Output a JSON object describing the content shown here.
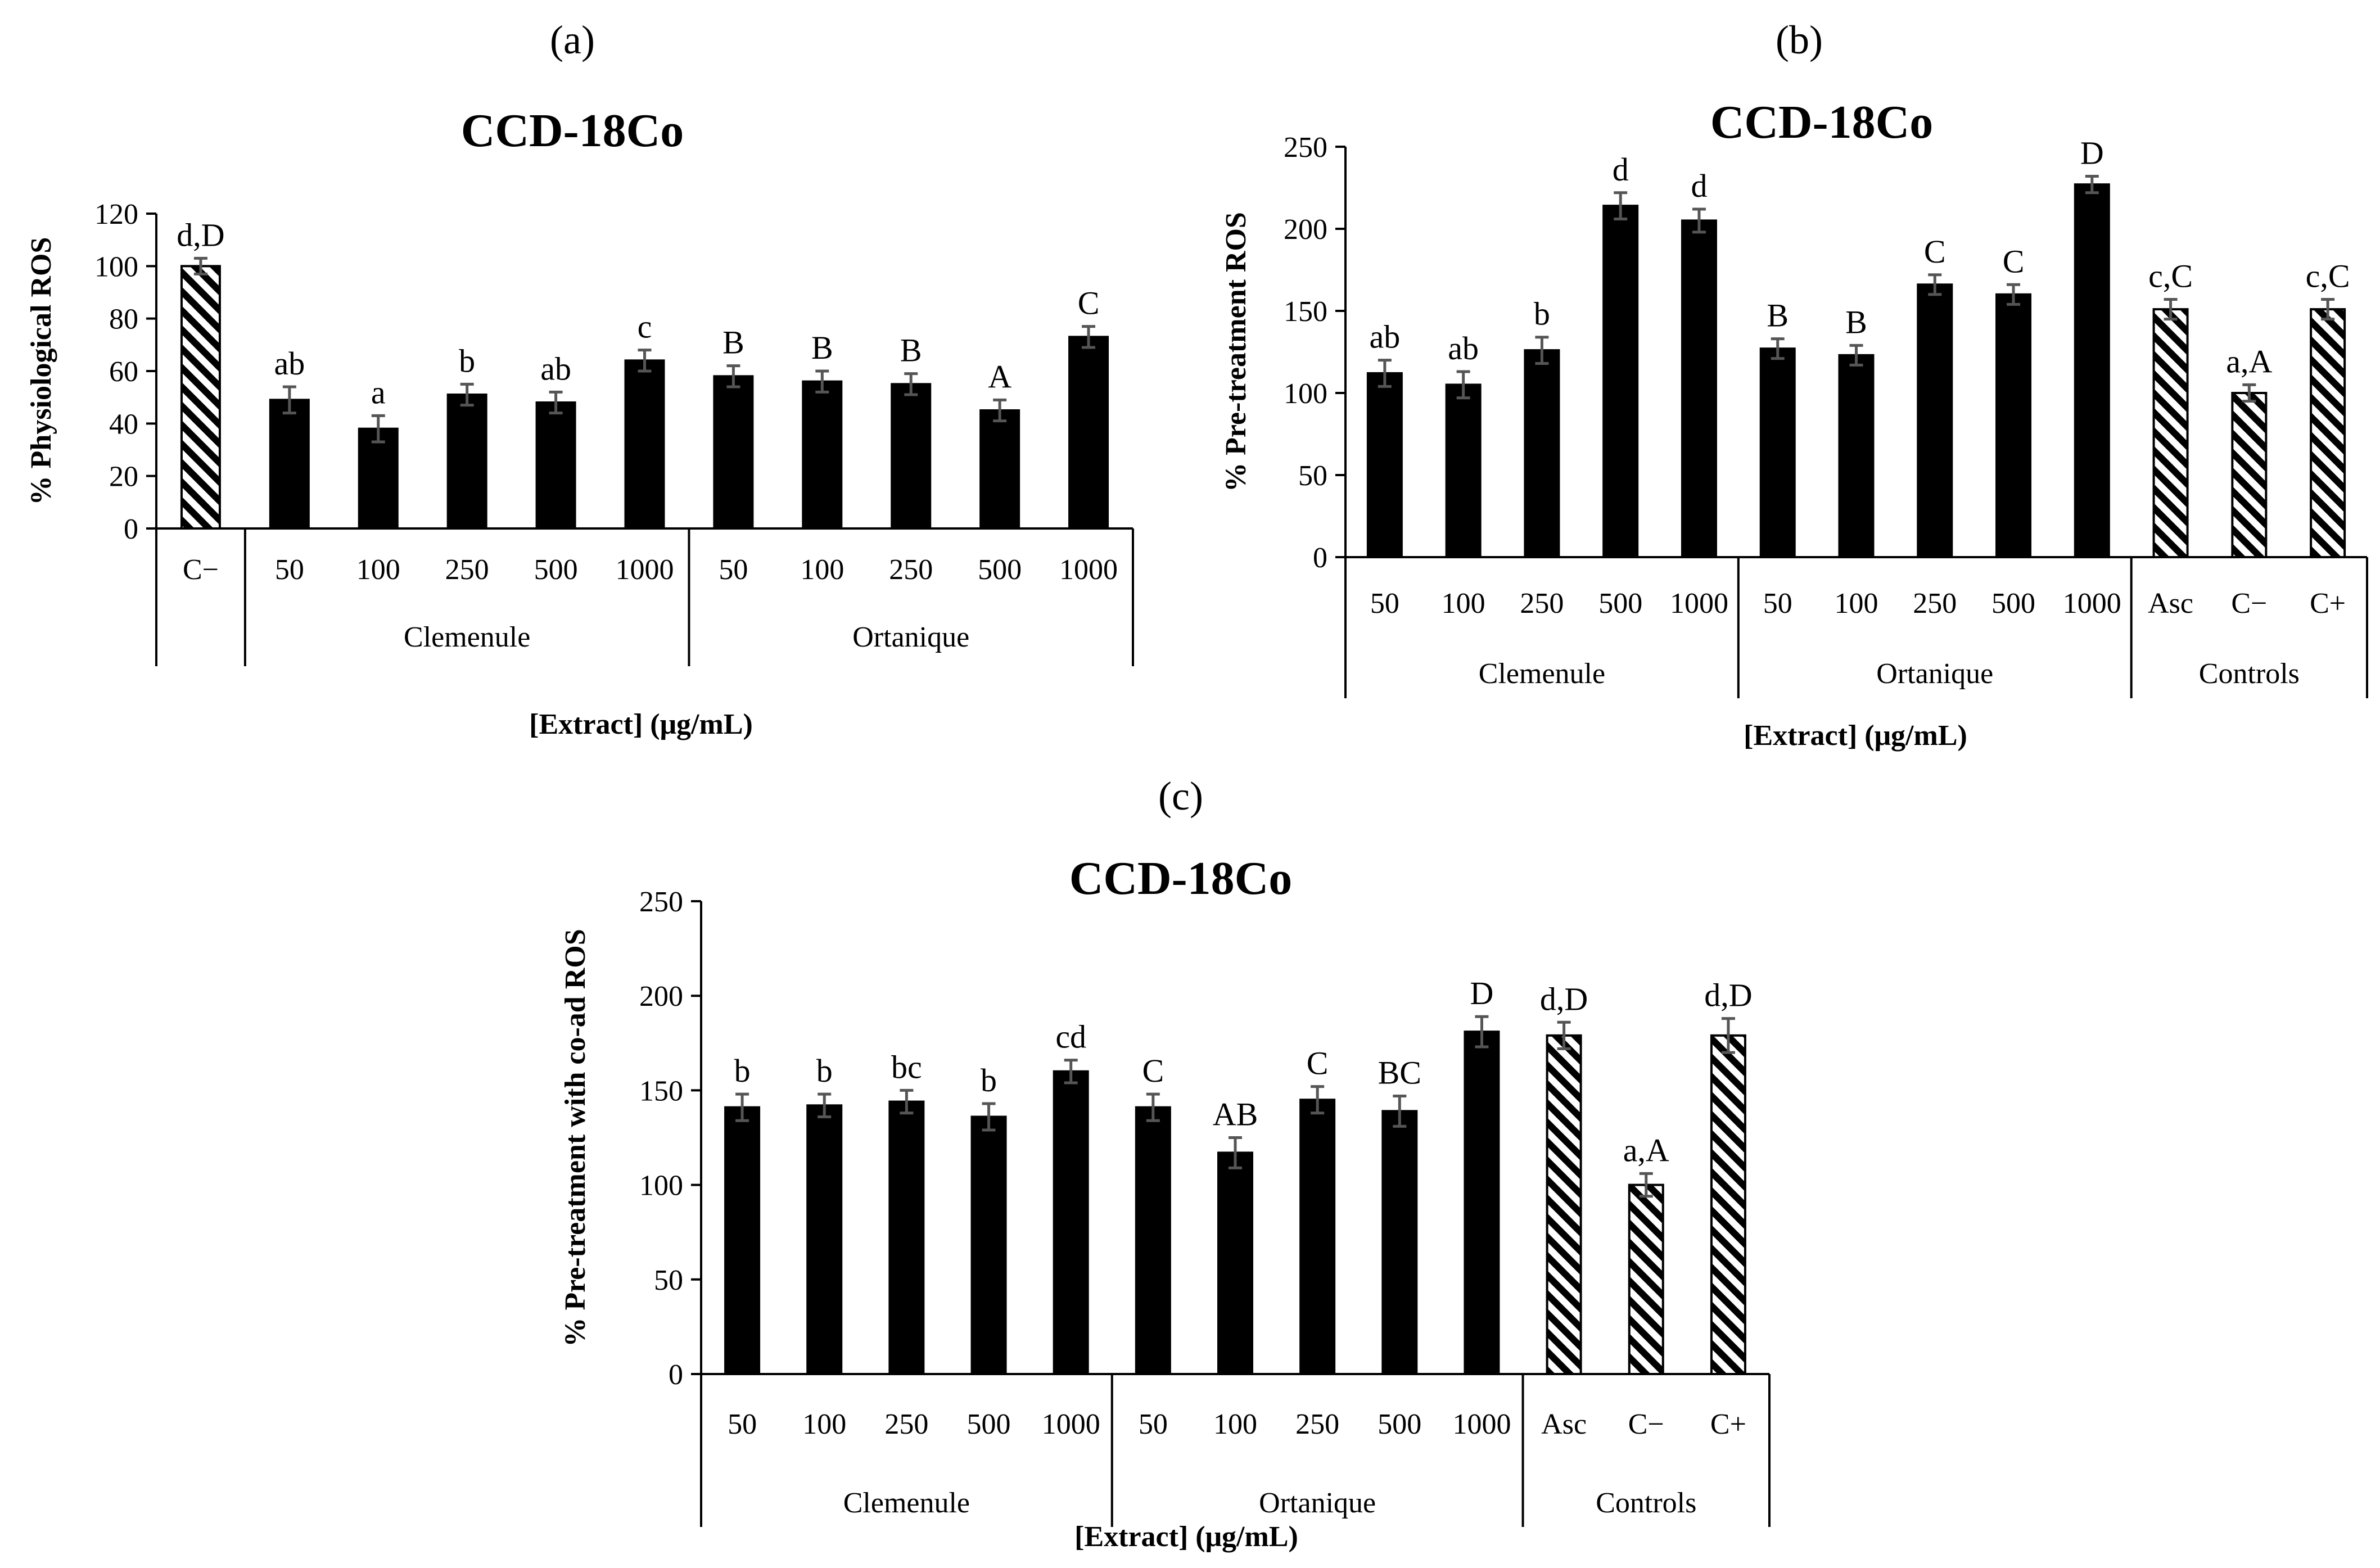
{
  "colors": {
    "bar": "#000000",
    "background": "#ffffff",
    "hatch": "#000000"
  },
  "chart_data": [
    {
      "type": "bar",
      "panel_label": "(a)",
      "title": "CCD-18Co",
      "ylabel": "% Physiological ROS",
      "xlabel": "[Extract] (μg/mL)",
      "ylim": [
        0,
        120
      ],
      "yticks": [
        "0",
        "20",
        "40",
        "60",
        "80",
        "100",
        "120"
      ],
      "groups": [
        "",
        "Clemenule",
        "Ortanique"
      ],
      "bars": [
        {
          "category": "C−",
          "group": 0,
          "value": 100,
          "error": 3,
          "label": "d,D",
          "pattern": "hatch"
        },
        {
          "category": "50",
          "group": 1,
          "value": 49,
          "error": 5,
          "label": "ab",
          "pattern": "solid"
        },
        {
          "category": "100",
          "group": 1,
          "value": 38,
          "error": 5,
          "label": "a",
          "pattern": "solid"
        },
        {
          "category": "250",
          "group": 1,
          "value": 51,
          "error": 4,
          "label": "b",
          "pattern": "solid"
        },
        {
          "category": "500",
          "group": 1,
          "value": 48,
          "error": 4,
          "label": "ab",
          "pattern": "solid"
        },
        {
          "category": "1000",
          "group": 1,
          "value": 64,
          "error": 4,
          "label": "c",
          "pattern": "solid"
        },
        {
          "category": "50",
          "group": 2,
          "value": 58,
          "error": 4,
          "label": "B",
          "pattern": "solid"
        },
        {
          "category": "100",
          "group": 2,
          "value": 56,
          "error": 4,
          "label": "B",
          "pattern": "solid"
        },
        {
          "category": "250",
          "group": 2,
          "value": 55,
          "error": 4,
          "label": "B",
          "pattern": "solid"
        },
        {
          "category": "500",
          "group": 2,
          "value": 45,
          "error": 4,
          "label": "A",
          "pattern": "solid"
        },
        {
          "category": "1000",
          "group": 2,
          "value": 73,
          "error": 4,
          "label": "C",
          "pattern": "solid"
        }
      ]
    },
    {
      "type": "bar",
      "panel_label": "(b)",
      "title": "CCD-18Co",
      "ylabel": "% Pre-treatment ROS",
      "xlabel": "[Extract] (μg/mL)",
      "ylim": [
        0,
        250
      ],
      "yticks": [
        "0",
        "50",
        "100",
        "150",
        "200",
        "250"
      ],
      "groups": [
        "Clemenule",
        "Ortanique",
        "Controls"
      ],
      "bars": [
        {
          "category": "50",
          "group": 0,
          "value": 112,
          "error": 8,
          "label": "ab",
          "pattern": "solid"
        },
        {
          "category": "100",
          "group": 0,
          "value": 105,
          "error": 8,
          "label": "ab",
          "pattern": "solid"
        },
        {
          "category": "250",
          "group": 0,
          "value": 126,
          "error": 8,
          "label": "b",
          "pattern": "solid"
        },
        {
          "category": "500",
          "group": 0,
          "value": 214,
          "error": 8,
          "label": "d",
          "pattern": "solid"
        },
        {
          "category": "1000",
          "group": 0,
          "value": 205,
          "error": 7,
          "label": "d",
          "pattern": "solid"
        },
        {
          "category": "50",
          "group": 1,
          "value": 127,
          "error": 6,
          "label": "B",
          "pattern": "solid"
        },
        {
          "category": "100",
          "group": 1,
          "value": 123,
          "error": 6,
          "label": "B",
          "pattern": "solid"
        },
        {
          "category": "250",
          "group": 1,
          "value": 166,
          "error": 6,
          "label": "C",
          "pattern": "solid"
        },
        {
          "category": "500",
          "group": 1,
          "value": 160,
          "error": 6,
          "label": "C",
          "pattern": "solid"
        },
        {
          "category": "1000",
          "group": 1,
          "value": 227,
          "error": 5,
          "label": "D",
          "pattern": "solid"
        },
        {
          "category": "Asc",
          "group": 2,
          "value": 151,
          "error": 6,
          "label": "c,C",
          "pattern": "hatch"
        },
        {
          "category": "C−",
          "group": 2,
          "value": 100,
          "error": 5,
          "label": "a,A",
          "pattern": "hatch"
        },
        {
          "category": "C+",
          "group": 2,
          "value": 151,
          "error": 6,
          "label": "c,C",
          "pattern": "hatch"
        }
      ]
    },
    {
      "type": "bar",
      "panel_label": "(c)",
      "title": "CCD-18Co",
      "ylabel": "% Pre-treatment with co-ad ROS",
      "xlabel": "[Extract] (μg/mL)",
      "ylim": [
        0,
        250
      ],
      "yticks": [
        "0",
        "50",
        "100",
        "150",
        "200",
        "250"
      ],
      "groups": [
        "Clemenule",
        "Ortanique",
        "Controls"
      ],
      "bars": [
        {
          "category": "50",
          "group": 0,
          "value": 141,
          "error": 7,
          "label": "b",
          "pattern": "solid"
        },
        {
          "category": "100",
          "group": 0,
          "value": 142,
          "error": 6,
          "label": "b",
          "pattern": "solid"
        },
        {
          "category": "250",
          "group": 0,
          "value": 144,
          "error": 6,
          "label": "bc",
          "pattern": "solid"
        },
        {
          "category": "500",
          "group": 0,
          "value": 136,
          "error": 7,
          "label": "b",
          "pattern": "solid"
        },
        {
          "category": "1000",
          "group": 0,
          "value": 160,
          "error": 6,
          "label": "cd",
          "pattern": "solid"
        },
        {
          "category": "50",
          "group": 1,
          "value": 141,
          "error": 7,
          "label": "C",
          "pattern": "solid"
        },
        {
          "category": "100",
          "group": 1,
          "value": 117,
          "error": 8,
          "label": "AB",
          "pattern": "solid"
        },
        {
          "category": "250",
          "group": 1,
          "value": 145,
          "error": 7,
          "label": "C",
          "pattern": "solid"
        },
        {
          "category": "500",
          "group": 1,
          "value": 139,
          "error": 8,
          "label": "BC",
          "pattern": "solid"
        },
        {
          "category": "1000",
          "group": 1,
          "value": 181,
          "error": 8,
          "label": "D",
          "pattern": "solid"
        },
        {
          "category": "Asc",
          "group": 2,
          "value": 179,
          "error": 7,
          "label": "d,D",
          "pattern": "hatch"
        },
        {
          "category": "C−",
          "group": 2,
          "value": 100,
          "error": 6,
          "label": "a,A",
          "pattern": "hatch"
        },
        {
          "category": "C+",
          "group": 2,
          "value": 179,
          "error": 9,
          "label": "d,D",
          "pattern": "hatch"
        }
      ]
    }
  ]
}
